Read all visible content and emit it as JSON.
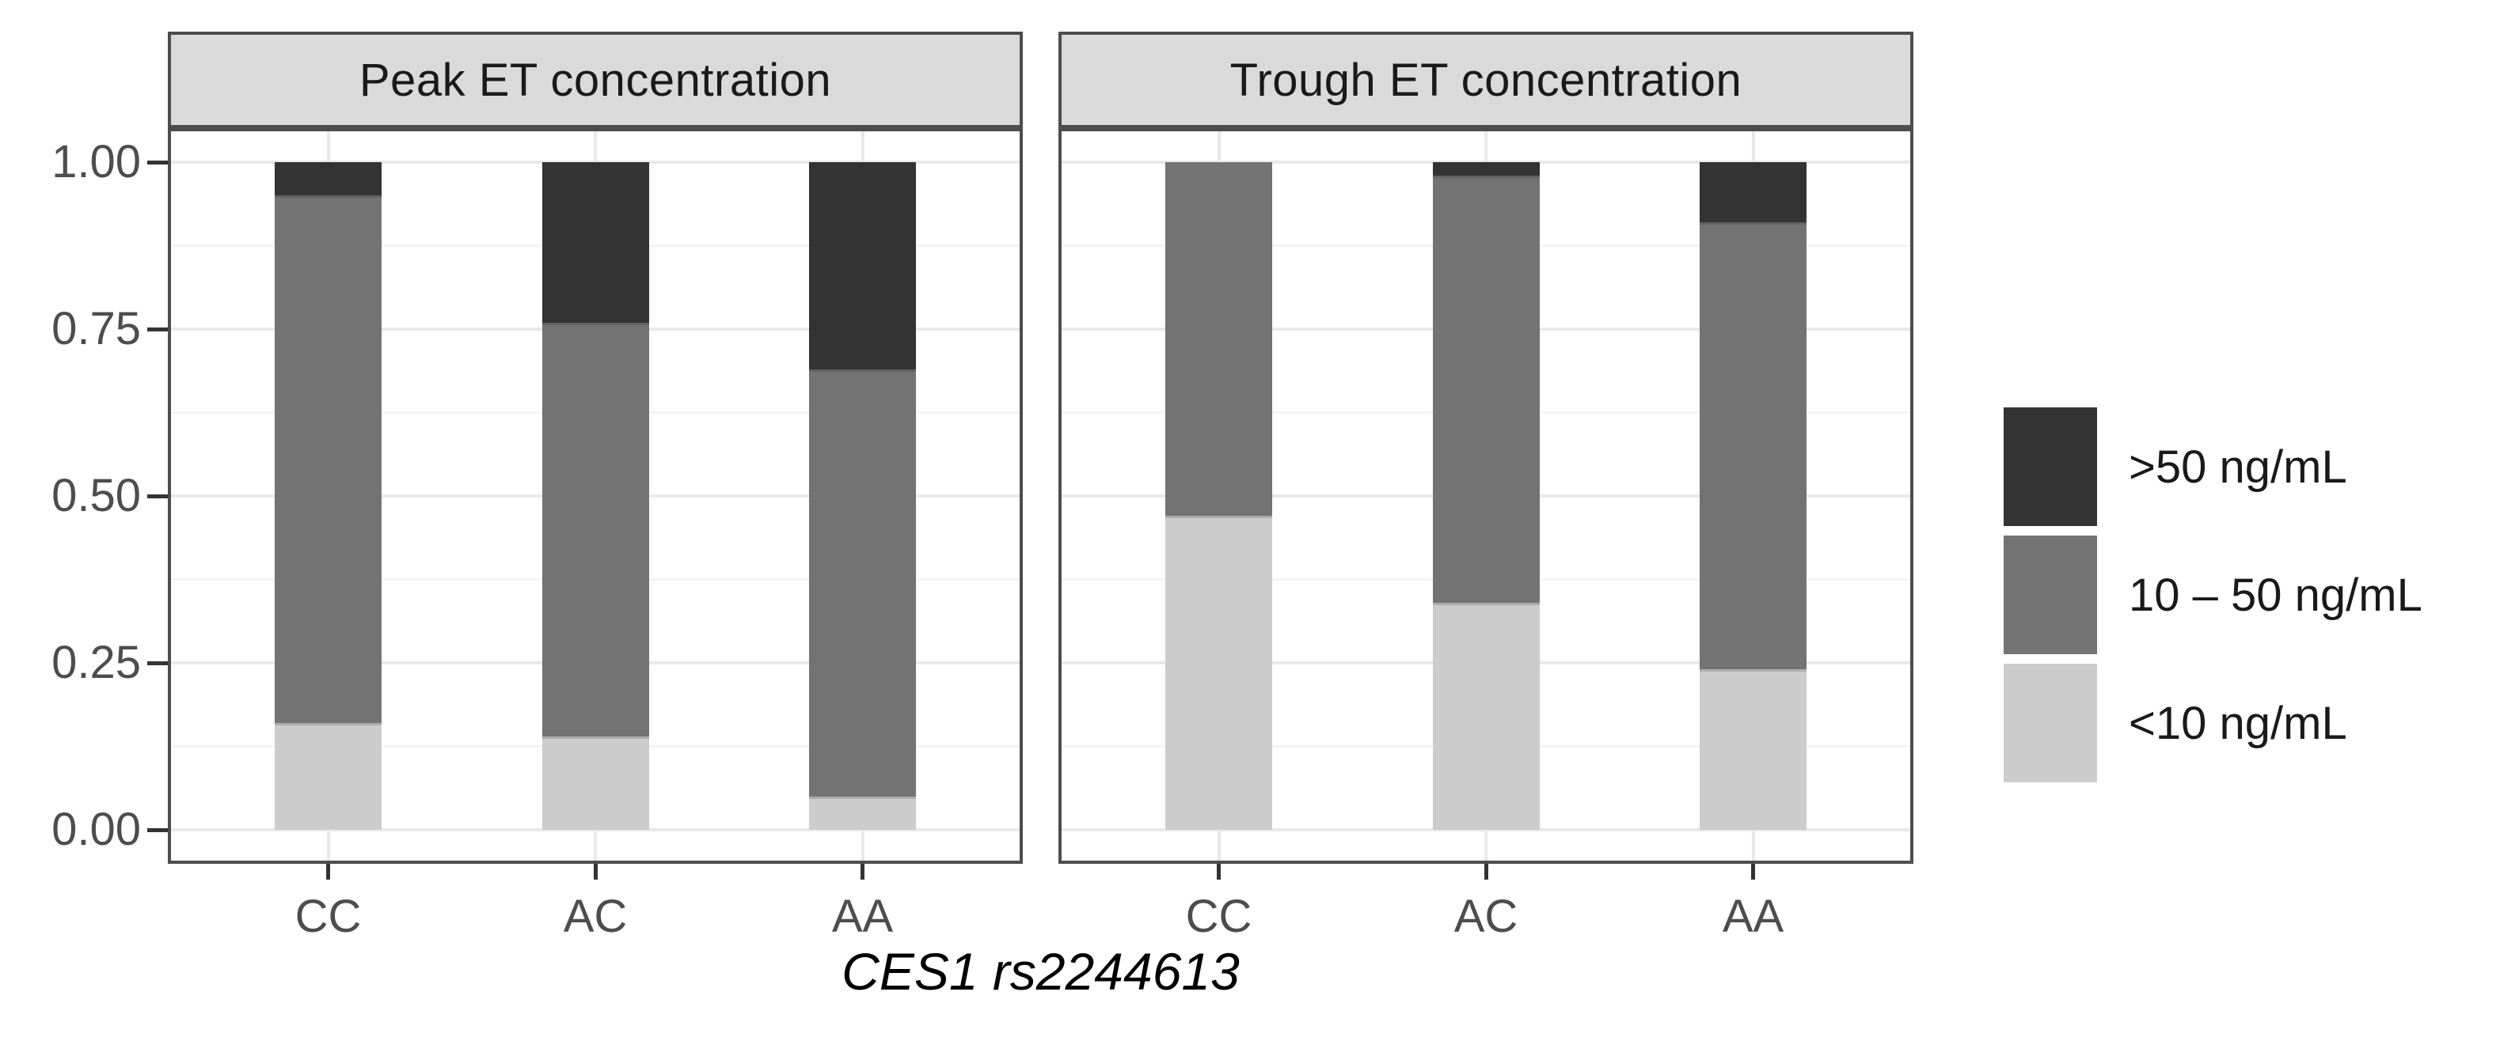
{
  "chart_data": {
    "type": "bar",
    "stacked": true,
    "orientation": "vertical",
    "title": "",
    "xlabel": "CES1 rs2244613",
    "ylabel": "",
    "ylim": [
      0,
      1
    ],
    "y_ticks": [
      "1.00",
      "0.75",
      "0.50",
      "0.25",
      "0.00"
    ],
    "y_tick_values": [
      1.0,
      0.75,
      0.5,
      0.25,
      0.0
    ],
    "y_minor_gridline_values": [
      0.875,
      0.625,
      0.375,
      0.125
    ],
    "grid": "on",
    "categories": [
      "CC",
      "AC",
      "AA"
    ],
    "legend_position": "right",
    "legend": [
      {
        "label": ">50 ng/mL",
        "color": "#333333"
      },
      {
        "label": "10 – 50 ng/mL",
        "color": "#737373"
      },
      {
        "label": "<10 ng/mL",
        "color": "#cccccc"
      }
    ],
    "facets": [
      {
        "label": "Peak ET concentration",
        "bars": [
          {
            "genotype": "CC",
            "gt50": 0.05,
            "mid10_50": 0.79,
            "lt10": 0.16
          },
          {
            "genotype": "AC",
            "gt50": 0.24,
            "mid10_50": 0.62,
            "lt10": 0.14
          },
          {
            "genotype": "AA",
            "gt50": 0.31,
            "mid10_50": 0.64,
            "lt10": 0.05
          }
        ]
      },
      {
        "label": "Trough ET concentration",
        "bars": [
          {
            "genotype": "CC",
            "gt50": 0.0,
            "mid10_50": 0.53,
            "lt10": 0.47
          },
          {
            "genotype": "AC",
            "gt50": 0.02,
            "mid10_50": 0.64,
            "lt10": 0.34
          },
          {
            "genotype": "AA",
            "gt50": 0.09,
            "mid10_50": 0.67,
            "lt10": 0.24
          }
        ]
      }
    ],
    "colors": {
      "panel_border": "#4d4d4d",
      "strip_fill": "#dadada",
      "grid_major": "#e9e9e9",
      "grid_minor": "#f4f4f4",
      "axis_text": "#4d4d4d",
      "tick_mark": "#333333"
    }
  }
}
